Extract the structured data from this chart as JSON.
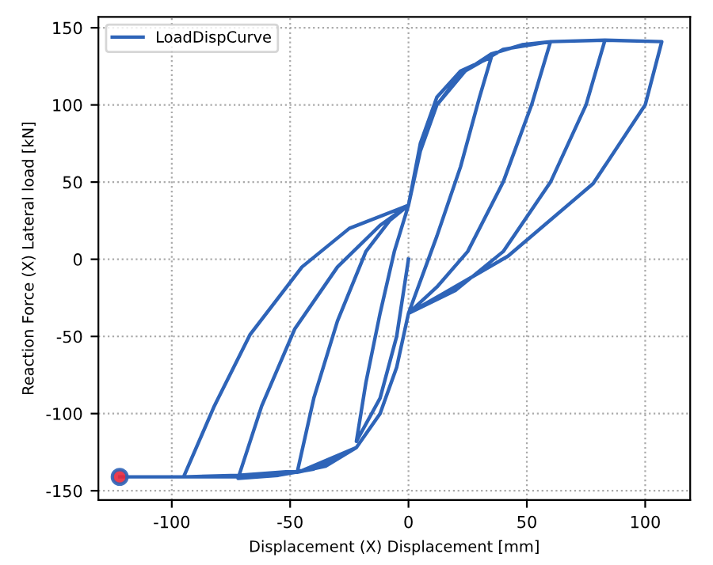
{
  "chart_data": {
    "type": "line",
    "xlabel": "Displacement (X) Displacement [mm]",
    "ylabel": "Reaction Force (X) Lateral load [kN]",
    "xlim": [
      -131,
      119
    ],
    "ylim": [
      -156,
      157
    ],
    "xticks": [
      -100,
      -50,
      0,
      50,
      100
    ],
    "yticks": [
      -150,
      -100,
      -50,
      0,
      50,
      100,
      150
    ],
    "grid": true,
    "legend": "top left",
    "line_style": "solid",
    "series": [
      {
        "name": "LoadDispCurve",
        "color": "#2e64b8",
        "marker": "none",
        "x": [
          0,
          -5,
          -12,
          -22,
          -18,
          -12,
          -6,
          0,
          5,
          12,
          22,
          35,
          30,
          22,
          12,
          0,
          -5,
          -12,
          -22,
          -35,
          -47,
          -40,
          -30,
          -18,
          -8,
          0,
          5,
          12,
          22,
          35,
          48,
          60,
          52,
          40,
          25,
          12,
          0,
          -5,
          -12,
          -22,
          -40,
          -55,
          -72,
          -62,
          -48,
          -30,
          -12,
          0,
          5,
          12,
          24,
          40,
          60,
          83,
          75,
          60,
          40,
          20,
          0,
          -5,
          -12,
          -22,
          -45,
          -72,
          -95,
          -82,
          -67,
          -45,
          -25,
          0,
          5,
          12,
          24,
          40,
          60,
          83,
          107,
          100,
          78,
          42,
          15,
          0,
          -5,
          -12,
          -22,
          -45,
          -72,
          -95,
          -122
        ],
        "values": [
          0,
          -50,
          -90,
          -118,
          -80,
          -35,
          5,
          35,
          75,
          105,
          122,
          131,
          105,
          60,
          15,
          -35,
          -70,
          -100,
          -122,
          -134,
          -138,
          -90,
          -40,
          5,
          25,
          35,
          70,
          100,
          120,
          133,
          139,
          141,
          100,
          50,
          5,
          -18,
          -35,
          -70,
          -100,
          -122,
          -136,
          -140,
          -142,
          -95,
          -45,
          -5,
          22,
          35,
          70,
          100,
          122,
          136,
          141,
          142,
          100,
          50,
          5,
          -20,
          -35,
          -70,
          -100,
          -122,
          -137,
          -141,
          -141,
          -95,
          -49,
          -5,
          20,
          35,
          70,
          100,
          122,
          136,
          141,
          142,
          141,
          100,
          49,
          2,
          -22,
          -35,
          -70,
          -100,
          -122,
          -137,
          -140,
          -141,
          -141
        ]
      },
      {
        "type": "scatter",
        "color": "#e8283c",
        "marker": "circle",
        "x": [
          -122
        ],
        "values": [
          -141
        ]
      }
    ]
  }
}
